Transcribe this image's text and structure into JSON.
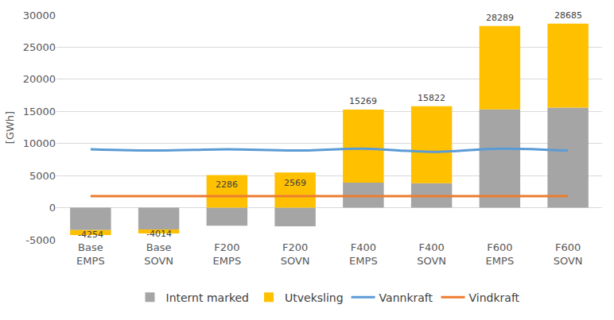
{
  "chart_data": {
    "type": "bar",
    "stacked": true,
    "ylabel": "[GWh]",
    "categories": [
      "Base EMPS",
      "Base SOVN",
      "F200 EMPS",
      "F200 SOVN",
      "F400 EMPS",
      "F400 SOVN",
      "F600 EMPS",
      "F600 SOVN"
    ],
    "series": [
      {
        "name": "Internt marked",
        "type": "bar",
        "color": "#a5a5a5",
        "values": [
          -3500,
          -3400,
          -2800,
          -2900,
          3900,
          3800,
          15300,
          15600
        ]
      },
      {
        "name": "Utveksling",
        "type": "bar",
        "color": "#ffc000",
        "values": [
          -754,
          -614,
          5086,
          5469,
          11369,
          12022,
          12989,
          13085
        ]
      },
      {
        "name": "Vannkraft",
        "type": "line",
        "line_style": "solid",
        "color": "#5b9bd5",
        "values": [
          9100,
          8900,
          9100,
          8900,
          9200,
          8700,
          9200,
          8900
        ]
      },
      {
        "name": "Vindkraft",
        "type": "line",
        "line_style": "solid",
        "color": "#ed7d31",
        "values": [
          1800,
          1800,
          1800,
          1800,
          1800,
          1800,
          1800,
          1800
        ]
      }
    ],
    "totals": [
      -4254,
      -4014,
      2286,
      2569,
      15269,
      15822,
      28289,
      28685
    ],
    "ylim": [
      -5000,
      30000
    ],
    "yticks": [
      -5000,
      0,
      5000,
      10000,
      15000,
      20000,
      25000,
      30000
    ],
    "grid": true,
    "legend": "bottom"
  }
}
